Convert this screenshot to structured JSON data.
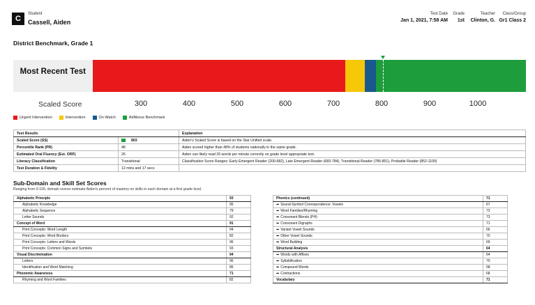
{
  "header": {
    "logo": "C",
    "student_label": "Student",
    "student_name": "Cassell, Aiden",
    "test_date_label": "Test Date",
    "test_date": "Jan 1, 2021, 7:58 AM",
    "grade_label": "Grade",
    "grade": "1st",
    "teacher_label": "Teacher",
    "teacher": "Clinton, G.",
    "class_label": "Class/Group",
    "class": "Gr1 Class 2"
  },
  "report_title": "District Benchmark, Grade 1",
  "chart_data": {
    "type": "bar",
    "row_label": "Most Recent Test",
    "xlabel": "Scaled Score",
    "xlim": [
      200,
      1100
    ],
    "ticks": [
      300,
      400,
      500,
      600,
      700,
      800,
      900,
      1000
    ],
    "score": 803,
    "ranges": [
      {
        "name": "Urgent Intervention",
        "from": 200,
        "to": 725,
        "color": "#e8191a"
      },
      {
        "name": "Intervention",
        "from": 725,
        "to": 765,
        "color": "#f7c70a"
      },
      {
        "name": "On Watch",
        "from": 765,
        "to": 789,
        "color": "#19598e"
      },
      {
        "name": "At/Above Benchmark",
        "from": 789,
        "to": 1100,
        "color": "#1d9d3b"
      }
    ]
  },
  "legend": [
    {
      "label": "Urgent Intervention",
      "color": "#e8191a"
    },
    {
      "label": "Intervention",
      "color": "#f7c70a"
    },
    {
      "label": "On Watch",
      "color": "#19598e"
    },
    {
      "label": "At/Above Benchmark",
      "color": "#1d9d3b"
    }
  ],
  "results": {
    "headers": [
      "Test Results",
      "Explanation"
    ],
    "rows": [
      {
        "label": "Scaled Score (SS)",
        "value": "803",
        "explanation": "Aiden's Scaled Score is based on the Star Unified scale."
      },
      {
        "label": "Percentile Rank (PR)",
        "value": "48",
        "explanation": "Aiden scored higher than 48% of students nationally in the same grade."
      },
      {
        "label": "Estimated Oral Fluency (Est. ORF)",
        "value": "26",
        "explanation": "Aiden can likely read 26 words per minute correctly on grade level appropriate text."
      },
      {
        "label": "Literacy Classification",
        "value": "Transitional",
        "explanation": "Classification Score Ranges: Early Emergent Reader (200-682), Late Emergent Reader (683-784), Transitional Reader (785-851), Probable Reader (852-1100)"
      },
      {
        "label": "Test Duration & Fidelity",
        "value": "12 mins and 17 secs",
        "explanation": ""
      }
    ]
  },
  "subdomain": {
    "title": "Sub-Domain and Skill Set Scores",
    "description": "Ranging from 0-100, domain scores estimate Aiden's percent of mastery on skills in each domain at a first grade level.",
    "left": [
      {
        "type": "group",
        "name": "Alphabetic Principle",
        "score": "93"
      },
      {
        "type": "skill",
        "name": "Alphabetic Knowledge",
        "score": "95"
      },
      {
        "type": "skill",
        "name": "Alphabetic Sequence",
        "score": "79"
      },
      {
        "type": "skill",
        "name": "Letter Sounds",
        "score": "92"
      },
      {
        "type": "group",
        "name": "Concept of Word",
        "score": "91"
      },
      {
        "type": "skill",
        "name": "Print Concepts: Word Length",
        "score": "94"
      },
      {
        "type": "skill",
        "name": "Print Concepts: Word Borders",
        "score": "82"
      },
      {
        "type": "skill",
        "name": "Print Concepts: Letters and Words",
        "score": "96"
      },
      {
        "type": "skill",
        "name": "Print Concepts: Common Signs and Symbols",
        "score": "93"
      },
      {
        "type": "group",
        "name": "Visual Discrimination",
        "score": "94"
      },
      {
        "type": "skill",
        "name": "Letters",
        "score": "96"
      },
      {
        "type": "skill",
        "name": "Identification and Word Matching",
        "score": "86"
      },
      {
        "type": "group",
        "name": "Phonemic Awareness",
        "score": "71"
      },
      {
        "type": "skill",
        "name": "Rhyming and Word Families",
        "score": "82"
      }
    ],
    "right": [
      {
        "type": "group",
        "name": "Phonics (continued)",
        "score": "71"
      },
      {
        "type": "skill",
        "name": "Sound-Symbol Correspondence: Vowels",
        "score": "67"
      },
      {
        "type": "skill",
        "name": "Word Families/Rhyming",
        "score": "73"
      },
      {
        "type": "skill",
        "name": "Consonant Blends (PH)",
        "score": "73"
      },
      {
        "type": "skill",
        "name": "Consonant Digraphs",
        "score": "71"
      },
      {
        "type": "skill",
        "name": "Variant Vowel Sounds",
        "score": "66"
      },
      {
        "type": "skill",
        "name": "Other Vowel Sounds",
        "score": "70"
      },
      {
        "type": "skill",
        "name": "Word Building",
        "score": "69"
      },
      {
        "type": "group",
        "name": "Structural Analysis",
        "score": "64"
      },
      {
        "type": "skill",
        "name": "Words with Affixes",
        "score": "64"
      },
      {
        "type": "skill",
        "name": "Syllabification",
        "score": "70"
      },
      {
        "type": "skill",
        "name": "Compound Words",
        "score": "58"
      },
      {
        "type": "skill",
        "name": "Contractions",
        "score": "68"
      },
      {
        "type": "group",
        "name": "Vocabulary",
        "score": "71"
      }
    ]
  }
}
